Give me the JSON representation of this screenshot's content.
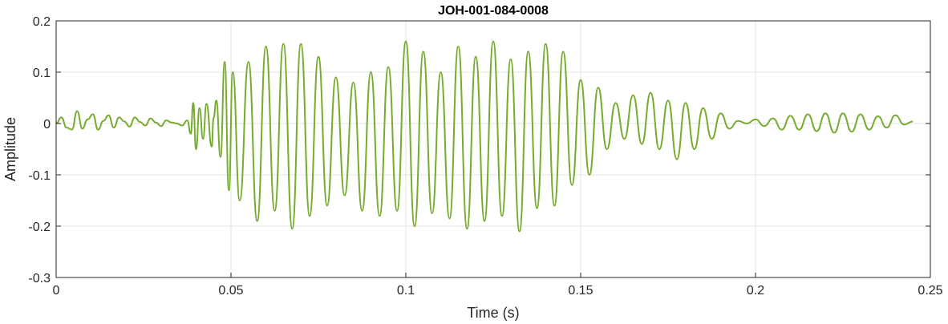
{
  "chart_data": {
    "type": "line",
    "title": "JOH-001-084-0008",
    "xlabel": "Time (s)",
    "ylabel": "Amplitude",
    "xlim": [
      0,
      0.25
    ],
    "ylim": [
      -0.3,
      0.2
    ],
    "grid": true,
    "xticks": [
      0,
      0.05,
      0.1,
      0.15,
      0.2,
      0.25
    ],
    "xtick_labels": [
      "0",
      "0.05",
      "0.1",
      "0.15",
      "0.2",
      "0.25"
    ],
    "yticks": [
      -0.3,
      -0.2,
      -0.1,
      0,
      0.1,
      0.2
    ],
    "ytick_labels": [
      "-0.3",
      "-0.2",
      "-0.1",
      "0",
      "0.1",
      "0.2"
    ],
    "series": [
      {
        "color": "#77ac30",
        "x": [
          0.0,
          0.0015,
          0.003,
          0.0045,
          0.006,
          0.0075,
          0.009,
          0.0105,
          0.012,
          0.0135,
          0.015,
          0.0165,
          0.018,
          0.0195,
          0.021,
          0.0225,
          0.024,
          0.0255,
          0.027,
          0.0285,
          0.03,
          0.0315,
          0.033,
          0.0345,
          0.036,
          0.0375,
          0.0385,
          0.0392,
          0.04,
          0.041,
          0.042,
          0.043,
          0.0445,
          0.045,
          0.0458,
          0.047,
          0.0482,
          0.0494,
          0.0505,
          0.0525,
          0.055,
          0.0575,
          0.06,
          0.0625,
          0.065,
          0.0675,
          0.07,
          0.0725,
          0.075,
          0.0775,
          0.08,
          0.0825,
          0.085,
          0.0875,
          0.09,
          0.0925,
          0.095,
          0.0975,
          0.1,
          0.1025,
          0.105,
          0.1075,
          0.11,
          0.1125,
          0.115,
          0.1175,
          0.12,
          0.1225,
          0.125,
          0.1275,
          0.13,
          0.1325,
          0.135,
          0.1375,
          0.14,
          0.1425,
          0.145,
          0.1475,
          0.15,
          0.1525,
          0.155,
          0.1575,
          0.16,
          0.1625,
          0.165,
          0.1675,
          0.17,
          0.1725,
          0.175,
          0.1775,
          0.18,
          0.1825,
          0.185,
          0.1875,
          0.19,
          0.1925,
          0.195,
          0.1975,
          0.2,
          0.2025,
          0.205,
          0.2075,
          0.21,
          0.2125,
          0.215,
          0.2175,
          0.22,
          0.2225,
          0.225,
          0.2275,
          0.23,
          0.2325,
          0.235,
          0.2375,
          0.24,
          0.2425,
          0.245
        ],
        "y": [
          0.0,
          0.012,
          -0.008,
          -0.012,
          0.024,
          -0.01,
          0.008,
          0.018,
          -0.012,
          0.005,
          0.016,
          -0.008,
          0.012,
          0.004,
          -0.006,
          0.012,
          0.003,
          -0.004,
          0.01,
          0.002,
          -0.005,
          0.006,
          0.002,
          0.0,
          -0.004,
          0.006,
          -0.02,
          0.04,
          -0.05,
          0.03,
          -0.03,
          0.038,
          -0.045,
          0.01,
          0.045,
          -0.065,
          0.12,
          -0.13,
          0.1,
          -0.15,
          0.12,
          -0.19,
          0.15,
          -0.17,
          0.155,
          -0.205,
          0.155,
          -0.18,
          0.13,
          -0.16,
          0.09,
          -0.14,
          0.08,
          -0.17,
          0.1,
          -0.18,
          0.11,
          -0.17,
          0.16,
          -0.2,
          0.14,
          -0.175,
          0.1,
          -0.185,
          0.15,
          -0.205,
          0.13,
          -0.19,
          0.16,
          -0.18,
          0.125,
          -0.21,
          0.14,
          -0.165,
          0.155,
          -0.16,
          0.14,
          -0.12,
          0.085,
          -0.1,
          0.07,
          -0.05,
          0.04,
          -0.03,
          0.055,
          -0.04,
          0.06,
          -0.05,
          0.045,
          -0.07,
          0.04,
          -0.05,
          0.03,
          -0.03,
          0.02,
          -0.01,
          0.005,
          0.0,
          0.008,
          -0.005,
          0.01,
          -0.012,
          0.015,
          -0.012,
          0.018,
          -0.015,
          0.02,
          -0.018,
          0.02,
          -0.016,
          0.018,
          -0.012,
          0.014,
          -0.008,
          0.016,
          -0.002,
          0.004
        ]
      }
    ]
  }
}
